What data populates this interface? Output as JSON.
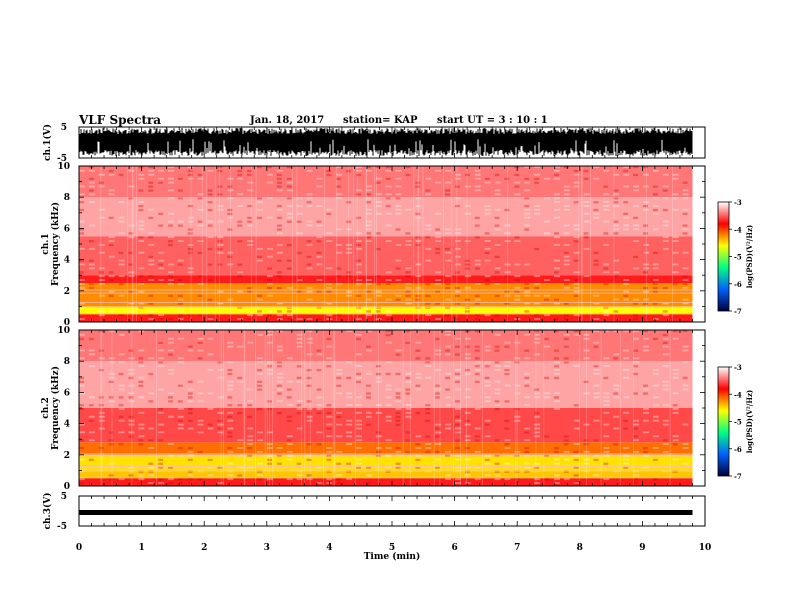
{
  "header": {
    "title": "VLF Spectra",
    "date": "Jan. 18, 2017",
    "station": "station= KAP",
    "start_ut": "start  UT =   3 : 10 : 1"
  },
  "chart_data": [
    {
      "type": "line",
      "panel": "ch1-waveform",
      "ylabel": "ch.1(V)",
      "ylim": [
        -5,
        5
      ],
      "yticks": [
        "5",
        "-5"
      ],
      "xlim": [
        0,
        10
      ],
      "note": "dense black waveform"
    },
    {
      "type": "heatmap",
      "panel": "ch1-spectrogram",
      "ylabel_line1": "ch.1",
      "ylabel_line2": "Frequency (kHz)",
      "ylim": [
        0,
        10
      ],
      "yticks": [
        "0",
        "2",
        "4",
        "6",
        "8",
        "10"
      ],
      "xlim": [
        0,
        10
      ],
      "data_end_min": 9.8,
      "bands": [
        {
          "f0": 0.0,
          "f1": 0.5,
          "level": -4.0
        },
        {
          "f0": 0.5,
          "f1": 1.0,
          "level": -5.0
        },
        {
          "f0": 1.0,
          "f1": 2.5,
          "level": -4.6
        },
        {
          "f0": 2.5,
          "f1": 3.0,
          "level": -4.0
        },
        {
          "f0": 3.0,
          "f1": 5.5,
          "level": -3.7
        },
        {
          "f0": 5.5,
          "f1": 8.0,
          "level": -3.4
        },
        {
          "f0": 8.0,
          "f1": 10.0,
          "level": -3.6
        }
      ],
      "colorbar": {
        "label": "log(PSD)(V²/Hz)",
        "ticks": [
          "-3",
          "-4",
          "-5",
          "-6",
          "-7"
        ],
        "range": [
          -7,
          -3
        ],
        "colors": [
          "#00003a",
          "#0060ff",
          "#00ff80",
          "#ffff00",
          "#ff0000",
          "#ffffff"
        ]
      }
    },
    {
      "type": "heatmap",
      "panel": "ch2-spectrogram",
      "ylabel_line1": "ch.2",
      "ylabel_line2": "Frequency (kHz)",
      "ylim": [
        0,
        10
      ],
      "yticks": [
        "0",
        "2",
        "4",
        "6",
        "8",
        "10"
      ],
      "xlim": [
        0,
        10
      ],
      "data_end_min": 9.8,
      "bands": [
        {
          "f0": 0.0,
          "f1": 0.5,
          "level": -4.0
        },
        {
          "f0": 0.5,
          "f1": 1.0,
          "level": -4.8
        },
        {
          "f0": 1.0,
          "f1": 2.0,
          "level": -4.9
        },
        {
          "f0": 2.0,
          "f1": 2.8,
          "level": -4.5
        },
        {
          "f0": 2.8,
          "f1": 5.0,
          "level": -3.8
        },
        {
          "f0": 5.0,
          "f1": 8.0,
          "level": -3.4
        },
        {
          "f0": 8.0,
          "f1": 10.0,
          "level": -3.6
        }
      ],
      "colorbar": {
        "label": "log(PSD)(V²/Hz)",
        "ticks": [
          "-3",
          "-4",
          "-5",
          "-6",
          "-7"
        ],
        "range": [
          -7,
          -3
        ],
        "colors": [
          "#00003a",
          "#0060ff",
          "#00ff80",
          "#ffff00",
          "#ff0000",
          "#ffffff"
        ]
      }
    },
    {
      "type": "line",
      "panel": "ch3-waveform",
      "ylabel": "ch.3(V)",
      "ylim": [
        -5,
        5
      ],
      "yticks": [
        "5",
        "-5"
      ],
      "xlim": [
        0,
        10
      ],
      "xlabel": "Time (min)",
      "xticks": [
        "0",
        "1",
        "2",
        "3",
        "4",
        "5",
        "6",
        "7",
        "8",
        "9",
        "10"
      ],
      "constant_value": -0.5
    }
  ]
}
